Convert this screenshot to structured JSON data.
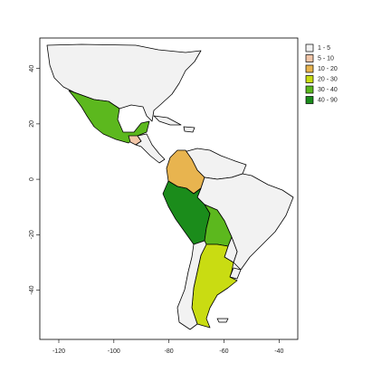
{
  "map": {
    "xlim": [
      -126.9,
      -33.2
    ],
    "xticks": [
      -120,
      -100,
      -80,
      -60,
      -40
    ],
    "ylim": [
      -57.8,
      51
    ],
    "yticks": [
      -40,
      -20,
      0,
      20,
      40
    ],
    "legend": {
      "position": "right",
      "items": [
        {
          "label": "1 - 5",
          "color": "#f2f2f2"
        },
        {
          "label": "5 - 10",
          "color": "#f2c6a8"
        },
        {
          "label": "10 - 20",
          "color": "#e8b44f"
        },
        {
          "label": "20 - 30",
          "color": "#c9dc12"
        },
        {
          "label": "30 - 40",
          "color": "#5cb81e"
        },
        {
          "label": "40 - 90",
          "color": "#1b8c1b"
        }
      ]
    }
  }
}
